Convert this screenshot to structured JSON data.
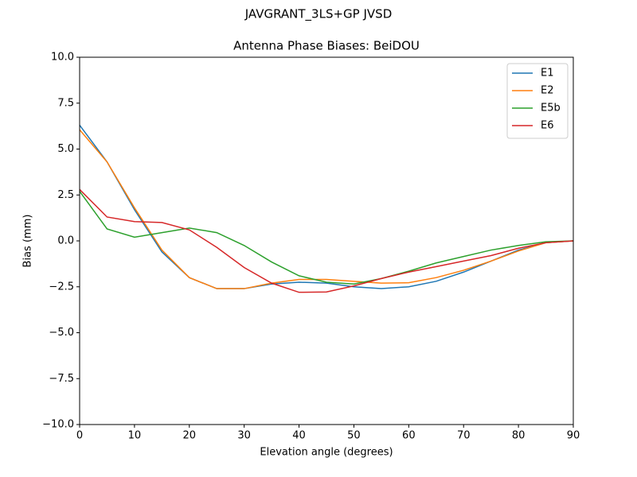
{
  "chart_data": {
    "type": "line",
    "suptitle": "JAVGRANT_3LS+GP JVSD",
    "title": "Antenna Phase Biases: BeiDOU",
    "xlabel": "Elevation angle (degrees)",
    "ylabel": "Bias (mm)",
    "x": [
      0,
      5,
      10,
      15,
      20,
      25,
      30,
      35,
      40,
      45,
      50,
      55,
      60,
      65,
      70,
      75,
      80,
      85,
      90
    ],
    "series": [
      {
        "name": "E1",
        "color": "#1f77b4",
        "values": [
          6.3,
          4.3,
          1.7,
          -0.6,
          -2.0,
          -2.6,
          -2.6,
          -2.35,
          -2.25,
          -2.3,
          -2.5,
          -2.6,
          -2.5,
          -2.2,
          -1.7,
          -1.1,
          -0.5,
          -0.1,
          0
        ]
      },
      {
        "name": "E2",
        "color": "#ff7f0e",
        "values": [
          6.05,
          4.3,
          1.8,
          -0.5,
          -2.0,
          -2.6,
          -2.6,
          -2.3,
          -2.1,
          -2.1,
          -2.2,
          -2.3,
          -2.28,
          -2.0,
          -1.6,
          -1.1,
          -0.55,
          -0.1,
          0
        ]
      },
      {
        "name": "E5b",
        "color": "#2ca02c",
        "values": [
          2.7,
          0.65,
          0.2,
          0.45,
          0.7,
          0.45,
          -0.25,
          -1.15,
          -1.9,
          -2.25,
          -2.35,
          -2.05,
          -1.65,
          -1.2,
          -0.85,
          -0.5,
          -0.25,
          -0.05,
          0
        ]
      },
      {
        "name": "E6",
        "color": "#d62728",
        "values": [
          2.8,
          1.3,
          1.05,
          1.0,
          0.6,
          -0.35,
          -1.45,
          -2.3,
          -2.8,
          -2.78,
          -2.45,
          -2.05,
          -1.7,
          -1.4,
          -1.1,
          -0.8,
          -0.4,
          -0.1,
          0
        ]
      }
    ],
    "xlim": [
      0,
      90
    ],
    "xticks": [
      0,
      10,
      20,
      30,
      40,
      50,
      60,
      70,
      80,
      90
    ],
    "ylim": [
      -10,
      10
    ],
    "yticks": [
      {
        "value": -10,
        "label": "−10.0"
      },
      {
        "value": -7.5,
        "label": "−7.5"
      },
      {
        "value": -5,
        "label": "−5.0"
      },
      {
        "value": -2.5,
        "label": "−2.5"
      },
      {
        "value": 0,
        "label": "0.0"
      },
      2.5,
      {
        "value": 5,
        "label": "5.0"
      },
      7.5,
      {
        "value": 10,
        "label": "10.0"
      }
    ],
    "legend": "upper right"
  }
}
